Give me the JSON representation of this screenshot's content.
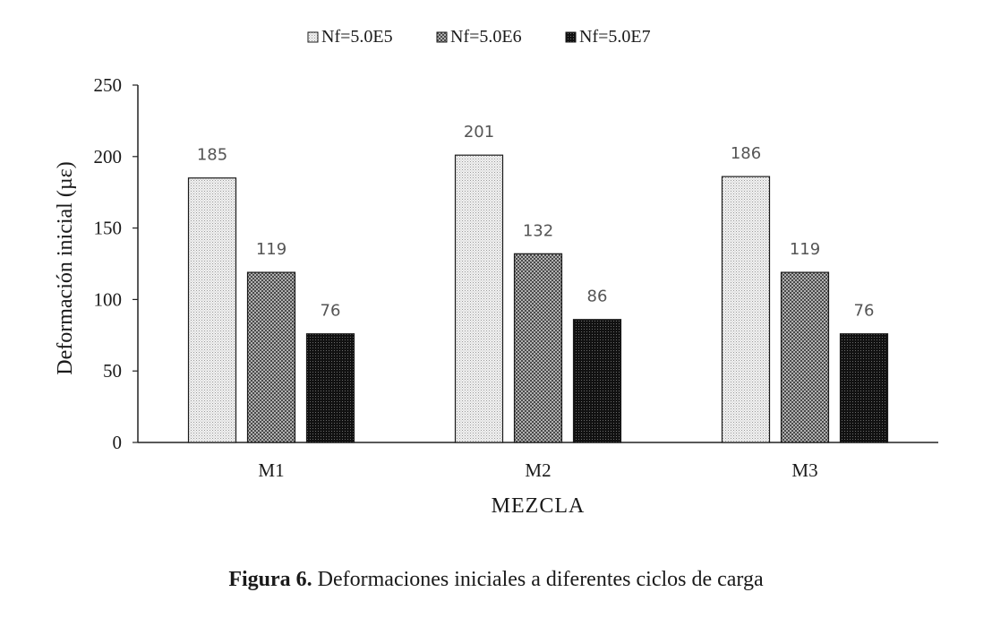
{
  "chart_data": {
    "type": "bar",
    "categories": [
      "M1",
      "M2",
      "M3"
    ],
    "series": [
      {
        "name": "Nf=5.0E5",
        "values": [
          185,
          201,
          186
        ],
        "pattern": "light-dots"
      },
      {
        "name": "Nf=5.0E6",
        "values": [
          119,
          132,
          119
        ],
        "pattern": "medium-checker"
      },
      {
        "name": "Nf=5.0E7",
        "values": [
          76,
          86,
          76
        ],
        "pattern": "dark-dots"
      }
    ],
    "data_labels": [
      [
        "185",
        "201",
        "186"
      ],
      [
        "119",
        "132",
        "119"
      ],
      [
        "76",
        "86",
        "76"
      ]
    ],
    "xlabel": "MEZCLA",
    "ylabel": "Deformación inicial (µε)",
    "ylim": [
      0,
      250
    ],
    "yticks": [
      0,
      50,
      100,
      150,
      200,
      250
    ],
    "legend_position": "top-center",
    "grid": false
  },
  "caption": {
    "label": "Figura 6.",
    "text": " Deformaciones iniciales a diferentes ciclos de carga"
  }
}
